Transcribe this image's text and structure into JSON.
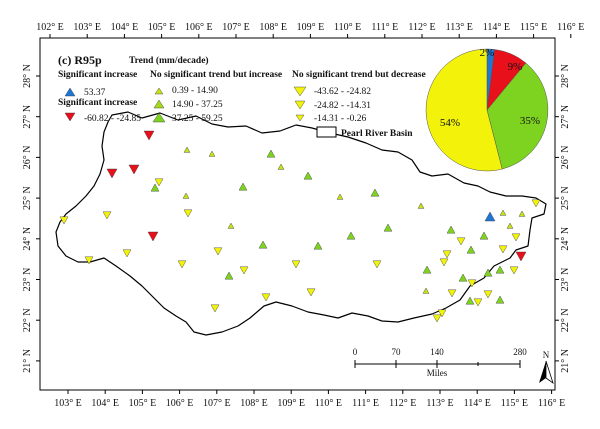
{
  "panel": {
    "title": "(c) R95p",
    "trend_heading": "Trend (mm/decade)"
  },
  "colors": {
    "blue": "#1f77d4",
    "red": "#e8101a",
    "green": "#7ed321",
    "yellow_green": "#c8e016",
    "yellow": "#f2f20a"
  },
  "axes": {
    "top_lon": [
      "102° E",
      "103° E",
      "104° E",
      "105° E",
      "106° E",
      "107° E",
      "108° E",
      "109° E",
      "110° E",
      "111° E",
      "112° E",
      "113° E",
      "114° E",
      "115° E",
      "116° E"
    ],
    "bottom_lon": [
      "103° E",
      "104° E",
      "105° E",
      "106° E",
      "107° E",
      "108° E",
      "109° E",
      "110° E",
      "111° E",
      "112° E",
      "113° E",
      "114° E",
      "115° E",
      "116° E"
    ],
    "lat": [
      "28° N",
      "27° N",
      "26° N",
      "25° N",
      "24° N",
      "23° N",
      "22° N",
      "21° N"
    ]
  },
  "legend": {
    "groups": [
      {
        "heading": "Significant increase",
        "items": [
          {
            "label": "53.37",
            "color": "blue",
            "symbol": "triangle-up"
          }
        ]
      },
      {
        "heading": "Significant increase",
        "items": [
          {
            "label": "-60.82 - -24.85",
            "color": "red",
            "symbol": "triangle-down"
          }
        ]
      },
      {
        "heading": "No significant trend but increase",
        "items": [
          {
            "label": "0.39 - 14.90",
            "color": "yellow_green",
            "symbol": "triangle-up"
          },
          {
            "label": "14.90 - 37.25",
            "color": "yellow_green",
            "symbol": "triangle-up"
          },
          {
            "label": "37.25 - 59.25",
            "color": "green",
            "symbol": "triangle-up"
          }
        ]
      },
      {
        "heading": "No significant trend but decrease",
        "items": [
          {
            "label": "-43.62 - -24.82",
            "color": "yellow",
            "symbol": "triangle-down"
          },
          {
            "label": "-24.82 - -14.31",
            "color": "yellow",
            "symbol": "triangle-down"
          },
          {
            "label": "-14.31 - -0.26",
            "color": "yellow",
            "symbol": "triangle-down"
          }
        ]
      }
    ],
    "basin_label": "Pearl River Basin"
  },
  "pie": {
    "slices": [
      {
        "label": "2%",
        "value": 2,
        "color": "blue"
      },
      {
        "label": "9%",
        "value": 9,
        "color": "red"
      },
      {
        "label": "35%",
        "value": 35,
        "color": "green"
      },
      {
        "label": "54%",
        "value": 54,
        "color": "yellow"
      }
    ]
  },
  "scale_bar": {
    "ticks": [
      "0",
      "70",
      "140",
      "280"
    ],
    "unit": "Miles"
  },
  "north_arrow": {
    "label": "N"
  }
}
